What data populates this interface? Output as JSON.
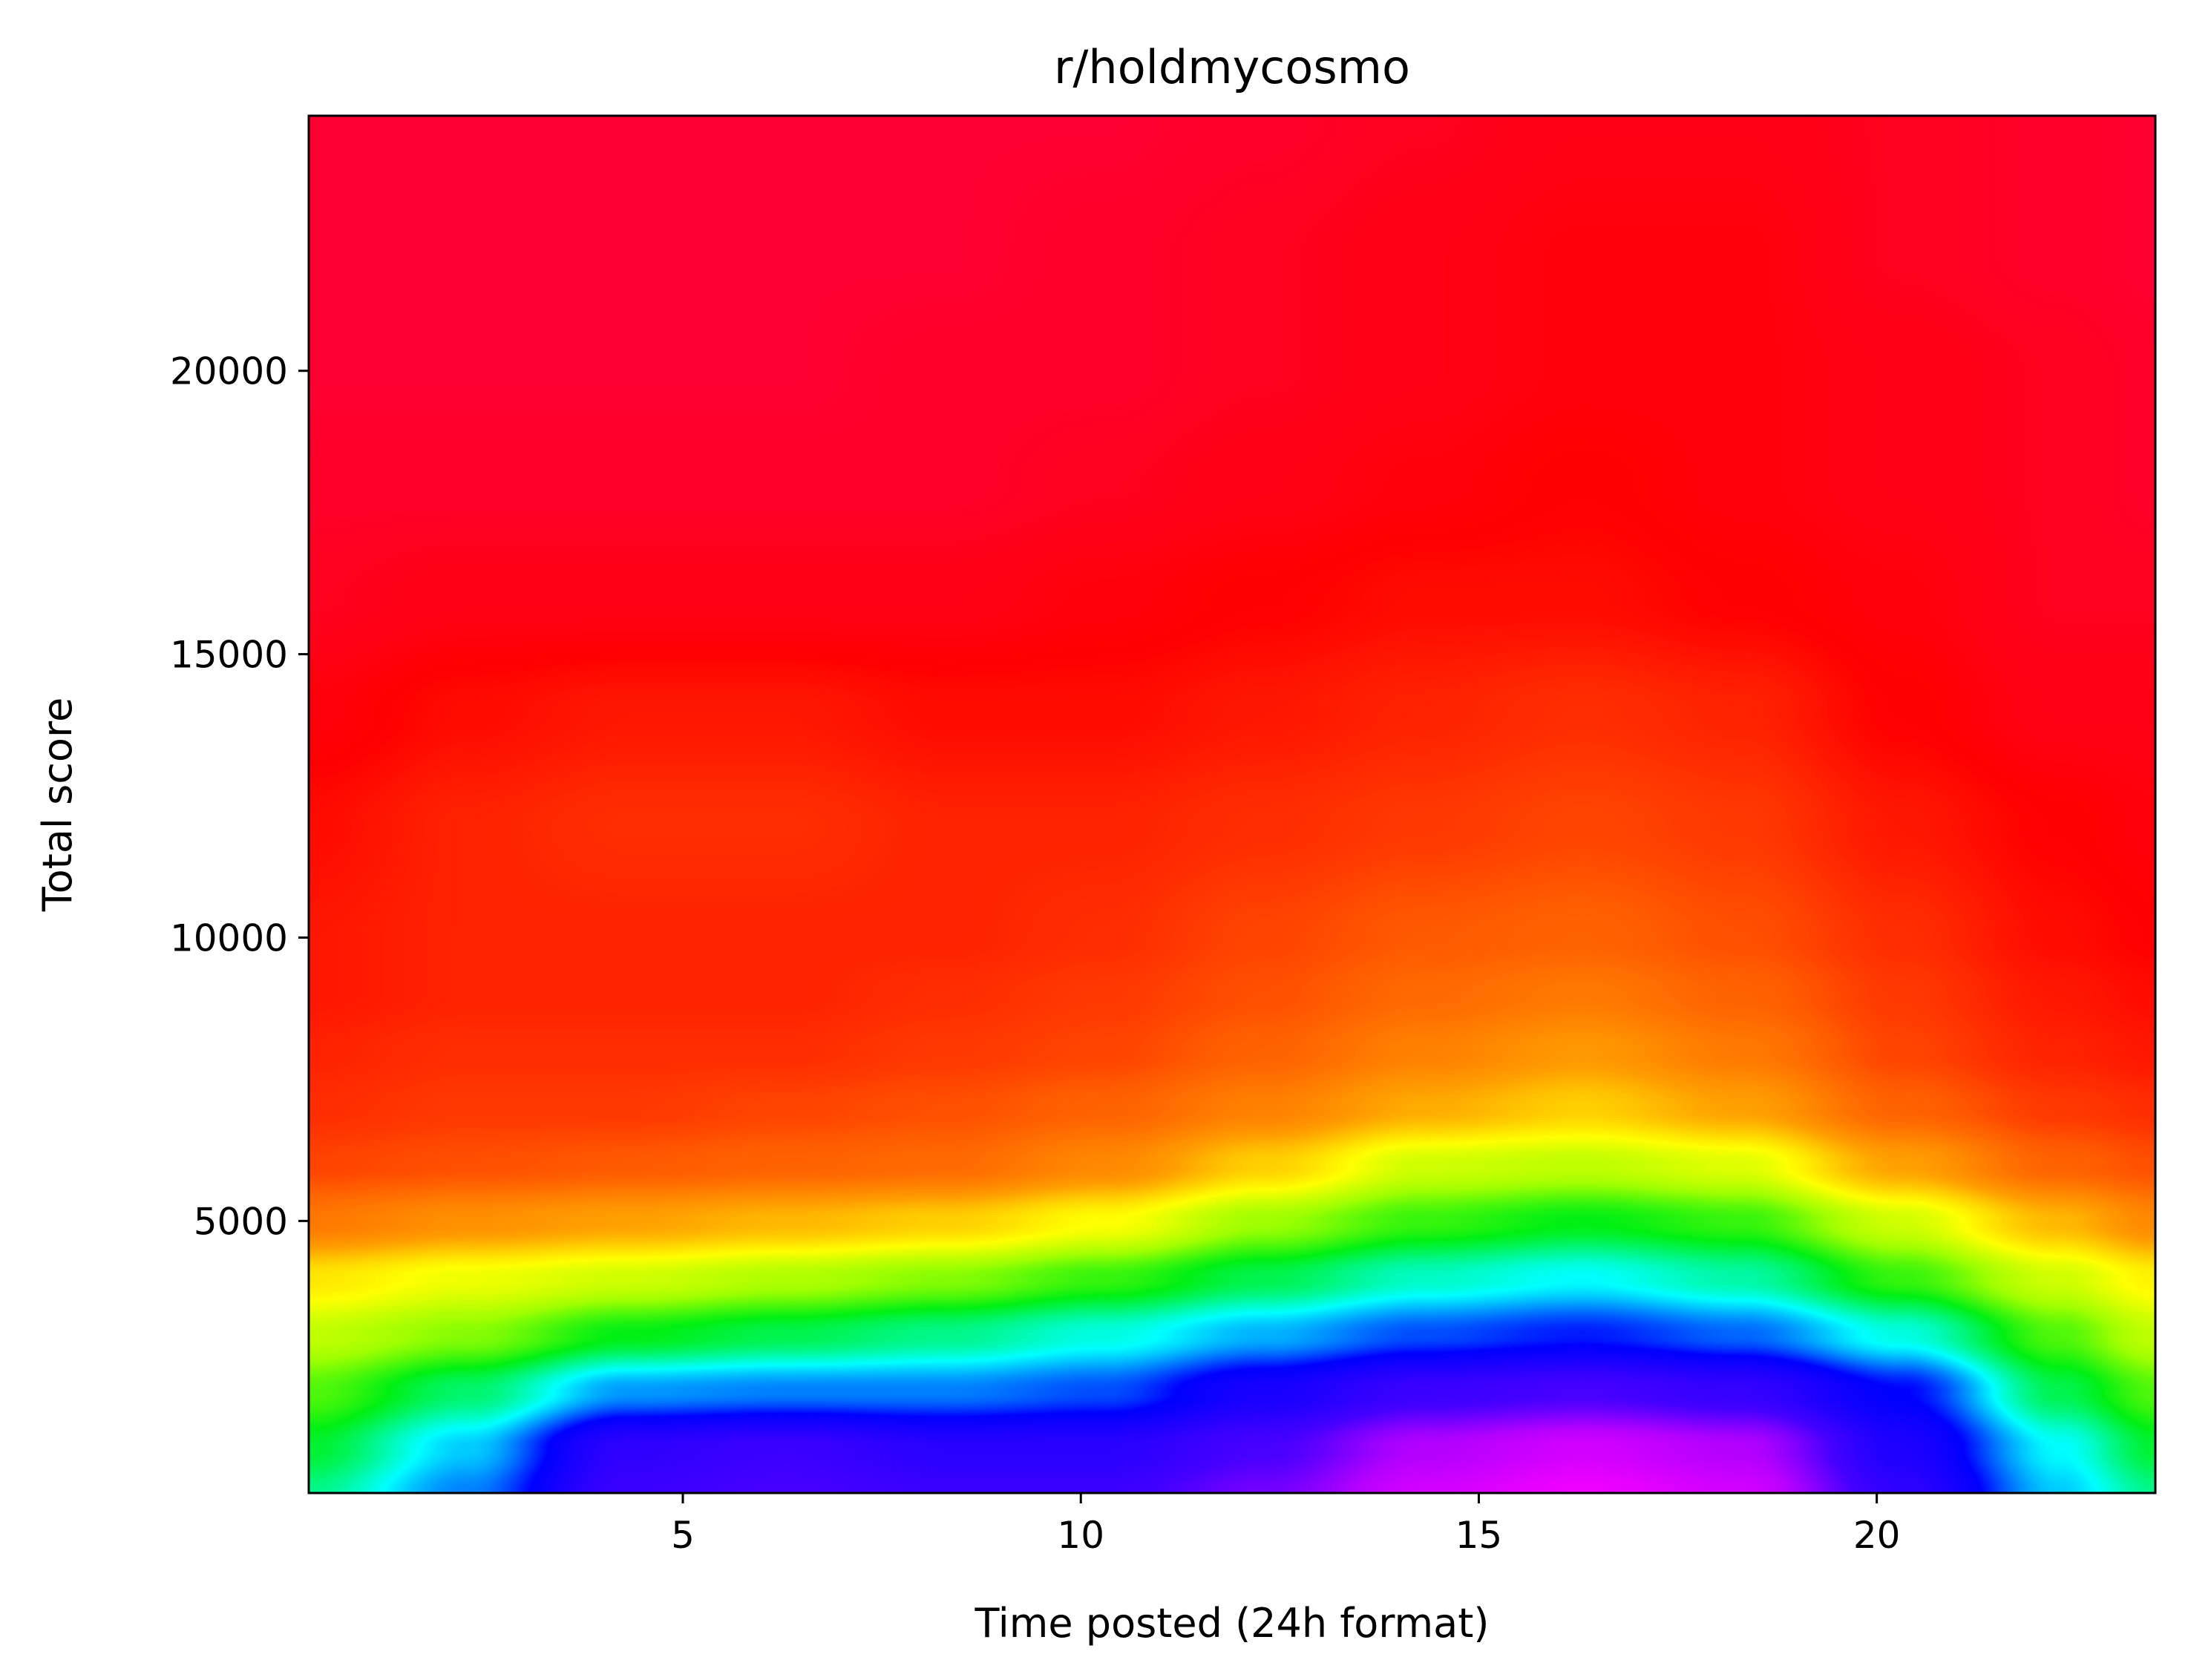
{
  "chart_data": {
    "type": "heatmap",
    "title": "r/holdmycosmo",
    "xlabel": "Time posted (24h format)",
    "ylabel": "Total score",
    "xlim": [
      0.3,
      23.5
    ],
    "ylim": [
      200,
      24500
    ],
    "xticks": [
      5,
      10,
      15,
      20
    ],
    "xtick_labels": [
      "5",
      "10",
      "15",
      "20"
    ],
    "yticks": [
      5000,
      10000,
      15000,
      20000
    ],
    "ytick_labels": [
      "5000",
      "10000",
      "15000",
      "20000"
    ],
    "colormap": "hsv-like (magenta/blue = high density, red = low)",
    "grid": false,
    "legend": "none",
    "x": [
      0.3,
      2.3,
      4.3,
      6.3,
      8.3,
      10.3,
      12.3,
      14.3,
      16.3,
      18.3,
      20.3,
      22.3,
      23.5
    ],
    "y": [
      200,
      1000,
      2000,
      3000,
      4000,
      5000,
      6000,
      7000,
      8000,
      9000,
      10000,
      12000,
      14000,
      16000,
      18000,
      20000,
      22000,
      24500
    ],
    "z_description": "relative density 0-1; rows indexed by y, columns by x",
    "z": [
      [
        0.46,
        0.55,
        0.7,
        0.72,
        0.7,
        0.7,
        0.76,
        0.86,
        0.9,
        0.86,
        0.68,
        0.52,
        0.46
      ],
      [
        0.43,
        0.52,
        0.68,
        0.7,
        0.67,
        0.67,
        0.72,
        0.82,
        0.86,
        0.82,
        0.65,
        0.5,
        0.43
      ],
      [
        0.39,
        0.45,
        0.54,
        0.55,
        0.55,
        0.57,
        0.64,
        0.7,
        0.72,
        0.69,
        0.6,
        0.44,
        0.39
      ],
      [
        0.34,
        0.37,
        0.42,
        0.44,
        0.46,
        0.49,
        0.53,
        0.57,
        0.59,
        0.56,
        0.49,
        0.39,
        0.34
      ],
      [
        0.28,
        0.31,
        0.33,
        0.35,
        0.37,
        0.4,
        0.44,
        0.48,
        0.5,
        0.47,
        0.4,
        0.33,
        0.29
      ],
      [
        0.17,
        0.2,
        0.22,
        0.24,
        0.26,
        0.3,
        0.36,
        0.4,
        0.42,
        0.4,
        0.33,
        0.24,
        0.19
      ],
      [
        0.11,
        0.12,
        0.13,
        0.14,
        0.15,
        0.19,
        0.26,
        0.33,
        0.34,
        0.32,
        0.22,
        0.14,
        0.12
      ],
      [
        0.09,
        0.1,
        0.1,
        0.11,
        0.12,
        0.14,
        0.18,
        0.23,
        0.26,
        0.22,
        0.14,
        0.1,
        0.09
      ],
      [
        0.08,
        0.09,
        0.09,
        0.09,
        0.1,
        0.11,
        0.14,
        0.18,
        0.21,
        0.17,
        0.11,
        0.08,
        0.07
      ],
      [
        0.07,
        0.08,
        0.08,
        0.08,
        0.09,
        0.1,
        0.12,
        0.15,
        0.17,
        0.14,
        0.1,
        0.07,
        0.06
      ],
      [
        0.07,
        0.08,
        0.08,
        0.08,
        0.08,
        0.09,
        0.11,
        0.13,
        0.14,
        0.12,
        0.09,
        0.06,
        0.05
      ],
      [
        0.06,
        0.08,
        0.09,
        0.09,
        0.08,
        0.08,
        0.09,
        0.1,
        0.11,
        0.1,
        0.07,
        0.05,
        0.04
      ],
      [
        0.04,
        0.06,
        0.07,
        0.07,
        0.06,
        0.06,
        0.07,
        0.08,
        0.09,
        0.08,
        0.05,
        0.03,
        0.03
      ],
      [
        0.02,
        0.03,
        0.03,
        0.03,
        0.03,
        0.04,
        0.05,
        0.06,
        0.06,
        0.05,
        0.04,
        0.02,
        0.02
      ],
      [
        0.01,
        0.01,
        0.01,
        0.01,
        0.01,
        0.02,
        0.03,
        0.04,
        0.05,
        0.04,
        0.03,
        0.02,
        0.01
      ],
      [
        0.0,
        0.0,
        0.0,
        0.0,
        0.01,
        0.01,
        0.02,
        0.03,
        0.04,
        0.04,
        0.03,
        0.02,
        0.01
      ],
      [
        0.0,
        0.0,
        0.0,
        0.0,
        0.0,
        0.01,
        0.02,
        0.03,
        0.04,
        0.04,
        0.02,
        0.01,
        0.0
      ],
      [
        0.0,
        0.0,
        0.0,
        0.0,
        0.0,
        0.0,
        0.01,
        0.02,
        0.03,
        0.03,
        0.02,
        0.01,
        0.0
      ]
    ]
  }
}
